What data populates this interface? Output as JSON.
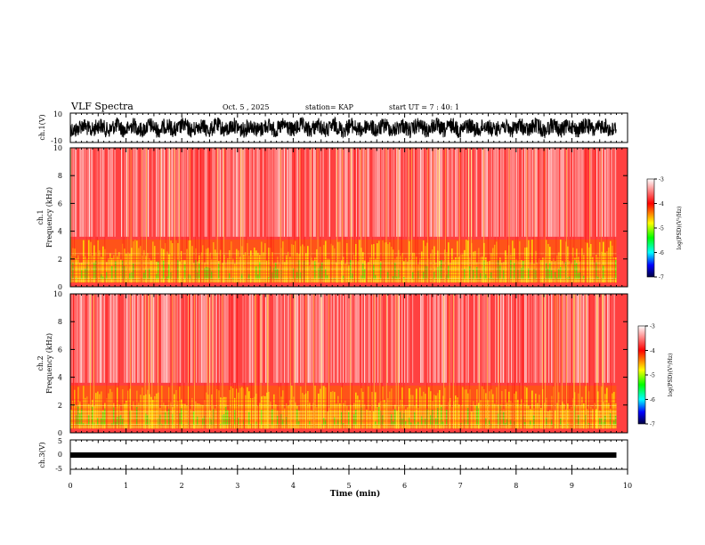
{
  "header": {
    "title": "VLF Spectra",
    "date": "Oct. 5 , 2025",
    "station": "station= KAP",
    "start": "start UT = 7 : 40: 1"
  },
  "chart_data": [
    {
      "type": "line",
      "name": "ch1-waveform",
      "ylabel": "ch.1(V)",
      "ylim": [
        -10,
        10
      ],
      "ytick_labels": [
        "10",
        "-10"
      ],
      "xlim": [
        0,
        10
      ],
      "data_end_min": 9.8
    },
    {
      "type": "heatmap",
      "name": "ch1-spectrogram",
      "ylabel": "ch.1 Frequency (kHz)",
      "ylabel_line1": "ch.1",
      "ylabel_line2": "Frequency (kHz)",
      "ylim": [
        0,
        10
      ],
      "ytick_labels": [
        "0",
        "2",
        "4",
        "6",
        "8",
        "10"
      ],
      "xlim": [
        0,
        10
      ],
      "colorbar": {
        "label": "log(PSD)(V²/Hz)",
        "range": [
          -7,
          -3
        ],
        "tick_labels": [
          "-3",
          "-4",
          "-5",
          "-6",
          "-7"
        ]
      }
    },
    {
      "type": "heatmap",
      "name": "ch2-spectrogram",
      "ylabel": "ch.2 Frequency (kHz)",
      "ylabel_line1": "ch.2",
      "ylabel_line2": "Frequency (kHz)",
      "ylim": [
        0,
        10
      ],
      "ytick_labels": [
        "0",
        "2",
        "4",
        "6",
        "8",
        "10"
      ],
      "xlim": [
        0,
        10
      ],
      "colorbar": {
        "label": "log(PSD)(V²/Hz)",
        "range": [
          -7,
          -3
        ],
        "tick_labels": [
          "-3",
          "-4",
          "-5",
          "-6",
          "-7"
        ]
      }
    },
    {
      "type": "line",
      "name": "ch3-waveform",
      "ylabel": "ch.3(V)",
      "ylim": [
        -5,
        5
      ],
      "ytick_labels": [
        "5",
        "0",
        "-5"
      ],
      "xlim": [
        0,
        10
      ],
      "data_end_min": 9.8
    }
  ],
  "xaxis": {
    "label": "Time (min)",
    "tick_labels": [
      "0",
      "1",
      "2",
      "3",
      "4",
      "5",
      "6",
      "7",
      "8",
      "9",
      "10"
    ]
  },
  "colors": {
    "spectro_high": "#ff0000",
    "spectro_mid": "#ffff00",
    "spectro_low": "#00ff00",
    "line": "#000000"
  }
}
